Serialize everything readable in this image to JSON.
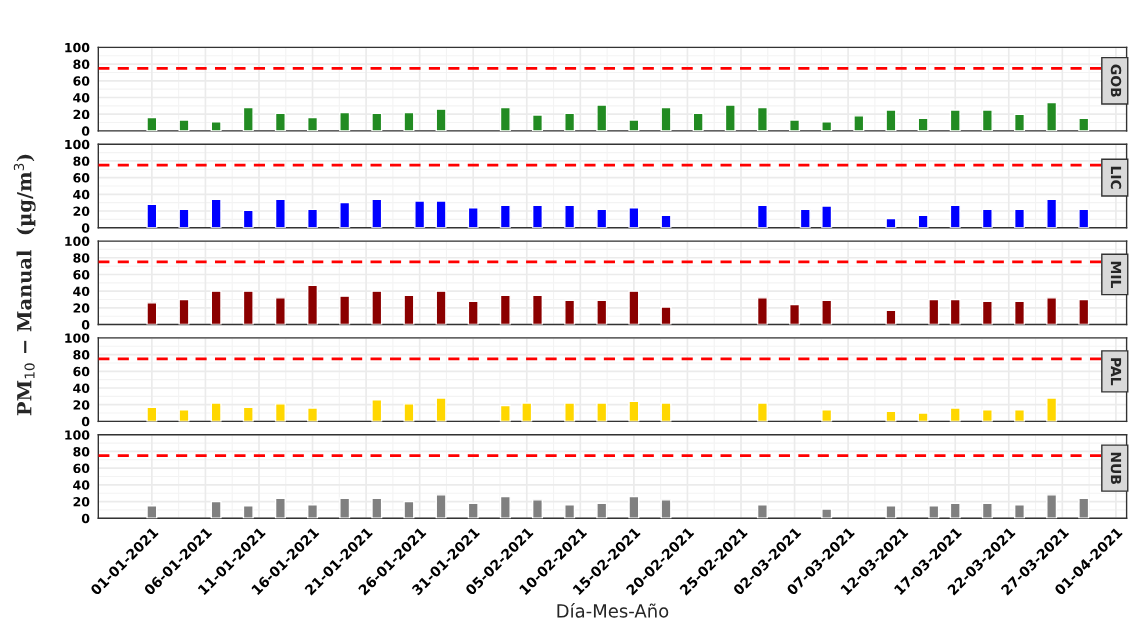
{
  "chart_data": [
    {
      "type": "bar",
      "title": "GOB",
      "color": "#228b22",
      "xlim": [
        "2020-12-27",
        "2021-04-02"
      ],
      "ylim": [
        0,
        100
      ],
      "yticks": [
        0,
        20,
        40,
        60,
        80,
        100
      ],
      "grid": true,
      "tick_labels": "y",
      "ref_lines": [
        {
          "axis": "y",
          "value": 75,
          "color": "#ff0000",
          "line_style": "dashed"
        }
      ],
      "x": [
        "2021-01-01",
        "2021-01-04",
        "2021-01-07",
        "2021-01-10",
        "2021-01-13",
        "2021-01-16",
        "2021-01-19",
        "2021-01-22",
        "2021-01-25",
        "2021-01-28",
        "2021-02-03",
        "2021-02-06",
        "2021-02-09",
        "2021-02-12",
        "2021-02-15",
        "2021-02-18",
        "2021-02-21",
        "2021-02-24",
        "2021-02-27",
        "2021-03-02",
        "2021-03-05",
        "2021-03-08",
        "2021-03-11",
        "2021-03-14",
        "2021-03-17",
        "2021-03-20",
        "2021-03-23",
        "2021-03-26",
        "2021-03-29"
      ],
      "values": [
        16,
        13,
        11,
        28,
        21,
        16,
        22,
        21,
        22,
        26,
        28,
        19,
        21,
        31,
        13,
        28,
        21,
        31,
        28,
        13,
        11,
        18,
        25,
        15,
        25,
        25,
        20,
        34,
        15
      ]
    },
    {
      "type": "bar",
      "title": "LIC",
      "color": "#0000ff",
      "xlim": [
        "2020-12-27",
        "2021-04-02"
      ],
      "ylim": [
        0,
        100
      ],
      "yticks": [
        0,
        20,
        40,
        60,
        80,
        100
      ],
      "grid": true,
      "tick_labels": "y",
      "ref_lines": [
        {
          "axis": "y",
          "value": 75,
          "color": "#ff0000",
          "line_style": "dashed"
        }
      ],
      "x": [
        "2021-01-01",
        "2021-01-04",
        "2021-01-07",
        "2021-01-10",
        "2021-01-13",
        "2021-01-16",
        "2021-01-19",
        "2021-01-22",
        "2021-01-26",
        "2021-01-28",
        "2021-01-31",
        "2021-02-03",
        "2021-02-06",
        "2021-02-09",
        "2021-02-12",
        "2021-02-15",
        "2021-02-18",
        "2021-02-27",
        "2021-03-03",
        "2021-03-05",
        "2021-03-11",
        "2021-03-14",
        "2021-03-17",
        "2021-03-20",
        "2021-03-23",
        "2021-03-26",
        "2021-03-29"
      ],
      "values": [
        28,
        22,
        34,
        21,
        34,
        22,
        30,
        34,
        32,
        32,
        24,
        27,
        27,
        27,
        22,
        24,
        15,
        27,
        22,
        26,
        11,
        15,
        27,
        22,
        22,
        34,
        22
      ]
    },
    {
      "type": "bar",
      "title": "MIL",
      "color": "#8b0000",
      "ylabel": "PM$_{10}$ − Manual  (µg/m$^{3}$)",
      "xlim": [
        "2020-12-27",
        "2021-04-02"
      ],
      "ylim": [
        0,
        100
      ],
      "yticks": [
        0,
        20,
        40,
        60,
        80,
        100
      ],
      "grid": true,
      "tick_labels": "y",
      "ref_lines": [
        {
          "axis": "y",
          "value": 75,
          "color": "#ff0000",
          "line_style": "dashed"
        }
      ],
      "x": [
        "2021-01-01",
        "2021-01-04",
        "2021-01-07",
        "2021-01-10",
        "2021-01-13",
        "2021-01-16",
        "2021-01-19",
        "2021-01-22",
        "2021-01-25",
        "2021-01-28",
        "2021-01-31",
        "2021-02-03",
        "2021-02-06",
        "2021-02-09",
        "2021-02-12",
        "2021-02-15",
        "2021-02-18",
        "2021-02-27",
        "2021-03-02",
        "2021-03-05",
        "2021-03-11",
        "2021-03-15",
        "2021-03-17",
        "2021-03-20",
        "2021-03-23",
        "2021-03-26",
        "2021-03-29"
      ],
      "values": [
        26,
        30,
        40,
        40,
        32,
        47,
        34,
        40,
        35,
        40,
        28,
        35,
        35,
        29,
        29,
        40,
        21,
        32,
        24,
        29,
        17,
        30,
        30,
        28,
        28,
        32,
        30
      ]
    },
    {
      "type": "bar",
      "title": "PAL",
      "color": "#ffd700",
      "xlim": [
        "2020-12-27",
        "2021-04-02"
      ],
      "ylim": [
        0,
        100
      ],
      "yticks": [
        0,
        20,
        40,
        60,
        80,
        100
      ],
      "grid": true,
      "tick_labels": "y",
      "ref_lines": [
        {
          "axis": "y",
          "value": 75,
          "color": "#ff0000",
          "line_style": "dashed"
        }
      ],
      "x": [
        "2021-01-01",
        "2021-01-04",
        "2021-01-07",
        "2021-01-10",
        "2021-01-13",
        "2021-01-16",
        "2021-01-22",
        "2021-01-25",
        "2021-01-28",
        "2021-02-03",
        "2021-02-05",
        "2021-02-09",
        "2021-02-12",
        "2021-02-15",
        "2021-02-18",
        "2021-02-27",
        "2021-03-05",
        "2021-03-11",
        "2021-03-14",
        "2021-03-17",
        "2021-03-20",
        "2021-03-23",
        "2021-03-26"
      ],
      "values": [
        17,
        14,
        22,
        17,
        21,
        16,
        26,
        21,
        28,
        19,
        22,
        22,
        22,
        24,
        22,
        22,
        14,
        12,
        10,
        16,
        14,
        14,
        28
      ]
    },
    {
      "type": "bar",
      "title": "NUB",
      "color": "#808080",
      "xlabel": "Día-Mes-Año",
      "xlim": [
        "2020-12-27",
        "2021-04-02"
      ],
      "ylim": [
        0,
        100
      ],
      "yticks": [
        0,
        20,
        40,
        60,
        80,
        100
      ],
      "grid": true,
      "ref_lines": [
        {
          "axis": "y",
          "value": 75,
          "color": "#ff0000",
          "line_style": "dashed"
        }
      ],
      "xticks": [
        {
          "value": "2021-01-01",
          "label": "01-01-2021"
        },
        {
          "value": "2021-01-06",
          "label": "06-01-2021"
        },
        {
          "value": "2021-01-11",
          "label": "11-01-2021"
        },
        {
          "value": "2021-01-16",
          "label": "16-01-2021"
        },
        {
          "value": "2021-01-21",
          "label": "21-01-2021"
        },
        {
          "value": "2021-01-26",
          "label": "26-01-2021"
        },
        {
          "value": "2021-01-31",
          "label": "31-01-2021"
        },
        {
          "value": "2021-02-05",
          "label": "05-02-2021"
        },
        {
          "value": "2021-02-10",
          "label": "10-02-2021"
        },
        {
          "value": "2021-02-15",
          "label": "15-02-2021"
        },
        {
          "value": "2021-02-20",
          "label": "20-02-2021"
        },
        {
          "value": "2021-02-25",
          "label": "25-02-2021"
        },
        {
          "value": "2021-03-02",
          "label": "02-03-2021"
        },
        {
          "value": "2021-03-07",
          "label": "07-03-2021"
        },
        {
          "value": "2021-03-12",
          "label": "12-03-2021"
        },
        {
          "value": "2021-03-17",
          "label": "17-03-2021"
        },
        {
          "value": "2021-03-22",
          "label": "22-03-2021"
        },
        {
          "value": "2021-03-27",
          "label": "27-03-2021"
        },
        {
          "value": "2021-04-01",
          "label": "01-04-2021"
        }
      ],
      "x": [
        "2021-01-01",
        "2021-01-07",
        "2021-01-10",
        "2021-01-13",
        "2021-01-16",
        "2021-01-19",
        "2021-01-22",
        "2021-01-25",
        "2021-01-28",
        "2021-01-31",
        "2021-02-03",
        "2021-02-06",
        "2021-02-09",
        "2021-02-12",
        "2021-02-15",
        "2021-02-18",
        "2021-02-27",
        "2021-03-05",
        "2021-03-11",
        "2021-03-15",
        "2021-03-17",
        "2021-03-20",
        "2021-03-23",
        "2021-03-26",
        "2021-03-29"
      ],
      "values": [
        15,
        20,
        15,
        24,
        16,
        24,
        24,
        20,
        28,
        18,
        26,
        22,
        16,
        18,
        26,
        22,
        16,
        11,
        15,
        15,
        18,
        18,
        16,
        28,
        24
      ]
    }
  ]
}
